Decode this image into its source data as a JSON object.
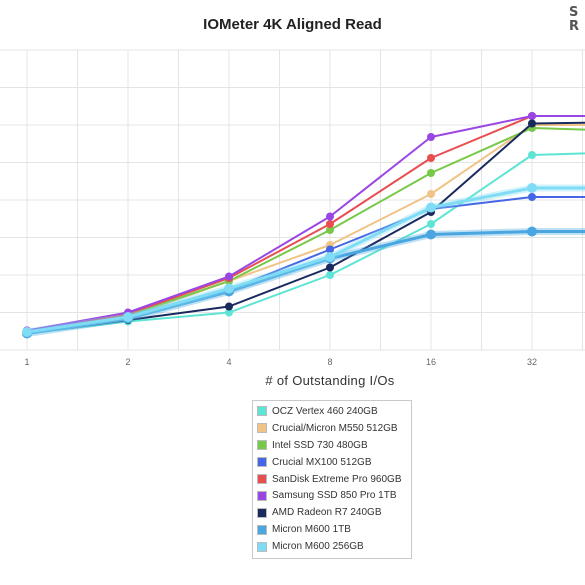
{
  "chart_data": {
    "type": "line",
    "title": "IOMeter 4K Aligned Read",
    "xlabel": "# of Outstanding I/Os",
    "ylabel": "",
    "x": [
      1,
      2,
      4,
      8,
      16,
      32,
      64
    ],
    "x_tick_labels": [
      "1",
      "2",
      "4",
      "8",
      "16",
      "32"
    ],
    "x_scale": "log2",
    "ylim": [
      0,
      100
    ],
    "grid": true,
    "legend_position": "bottom-center",
    "series": [
      {
        "name": "OCZ Vertex 460 240GB",
        "color": "#5ee4d4",
        "values": [
          5.5,
          9.5,
          12.5,
          25,
          42,
          65,
          66
        ]
      },
      {
        "name": "Crucial/Micron M550 512GB",
        "color": "#f0c487",
        "values": [
          6,
          11,
          23,
          35,
          52,
          75,
          75
        ]
      },
      {
        "name": "Intel SSD 730 480GB",
        "color": "#78c84a",
        "values": [
          6.5,
          11.5,
          23,
          40,
          59,
          74,
          73
        ]
      },
      {
        "name": "Crucial MX100 512GB",
        "color": "#4566e6",
        "values": [
          6,
          11,
          20,
          33.5,
          47,
          51,
          51
        ]
      },
      {
        "name": "SanDisk Extreme Pro 960GB",
        "color": "#e84e50",
        "values": [
          6.5,
          12,
          24,
          42,
          64,
          78,
          78
        ]
      },
      {
        "name": "Samsung SSD 850 Pro 1TB",
        "color": "#9a46e4",
        "values": [
          6.5,
          12.5,
          24.5,
          44.5,
          71,
          78,
          78
        ]
      },
      {
        "name": "AMD Radeon R7 240GB",
        "color": "#1a2a5e",
        "values": [
          5.5,
          10,
          14.5,
          27.5,
          46,
          75.5,
          76
        ]
      },
      {
        "name": "Micron M600 1TB",
        "color": "#4aa6e0",
        "values": [
          5.5,
          10.5,
          19.5,
          30.5,
          38.5,
          39.5,
          39.5
        ]
      },
      {
        "name": "Micron M600 256GB",
        "color": "#7fdcf4",
        "values": [
          6,
          11,
          20.5,
          31,
          47.5,
          54,
          54
        ]
      }
    ]
  }
}
